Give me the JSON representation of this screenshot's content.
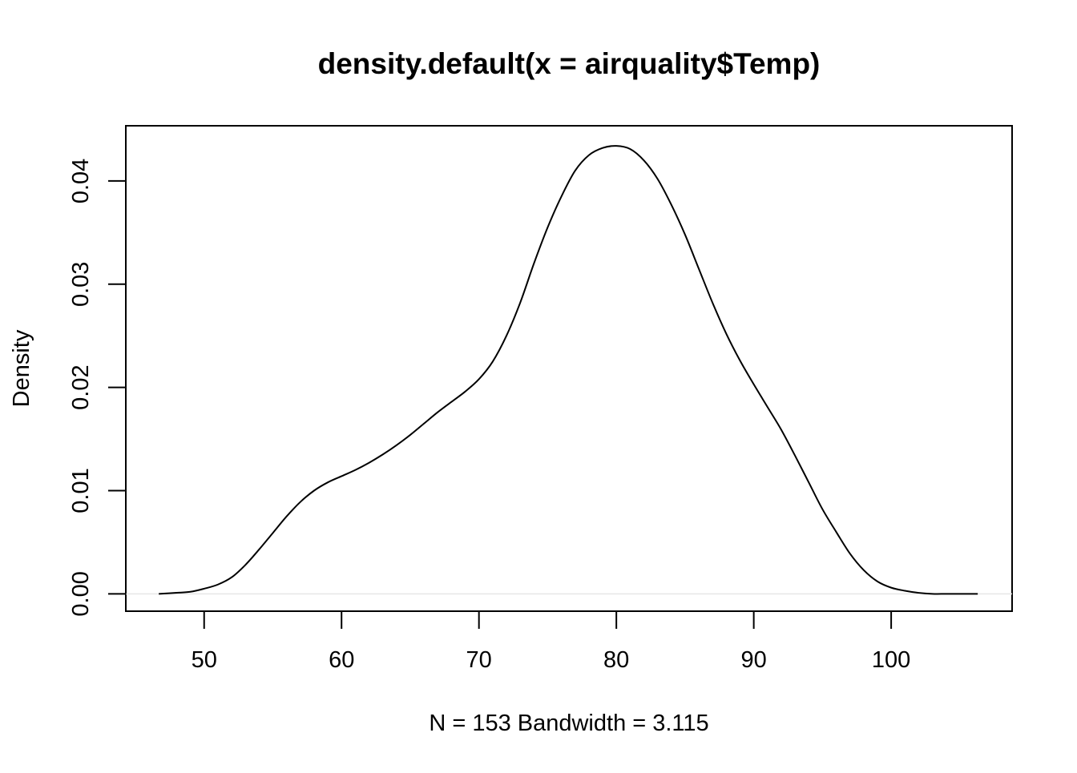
{
  "chart_data": {
    "type": "line",
    "title": "density.default(x = airquality$Temp)",
    "xlabel": "N = 153   Bandwidth = 3.115",
    "ylabel": "Density",
    "xlim": [
      44.3,
      108.8
    ],
    "ylim": [
      -0.00168,
      0.04535
    ],
    "x_ticks": [
      50,
      60,
      70,
      80,
      90,
      100
    ],
    "x_tick_labels": [
      "50",
      "60",
      "70",
      "80",
      "90",
      "100"
    ],
    "y_ticks": [
      0.0,
      0.01,
      0.02,
      0.03,
      0.04
    ],
    "y_tick_labels": [
      "0.00",
      "0.01",
      "0.02",
      "0.03",
      "0.04"
    ],
    "grid": false,
    "colors": {
      "line": "#000000",
      "baseline": "#e6e6e6"
    },
    "series": [
      {
        "name": "density",
        "x": [
          46.7,
          48.0,
          49.0,
          50.0,
          51.0,
          52.0,
          53.0,
          54.0,
          55.0,
          56.0,
          57.0,
          58.0,
          59.0,
          60.0,
          61.0,
          62.0,
          63.0,
          64.0,
          65.0,
          66.0,
          67.0,
          68.0,
          69.0,
          70.0,
          71.0,
          72.0,
          73.0,
          74.0,
          75.0,
          76.0,
          77.0,
          78.0,
          79.0,
          80.0,
          81.0,
          82.0,
          83.0,
          84.0,
          85.0,
          86.0,
          87.0,
          88.0,
          89.0,
          90.0,
          91.0,
          92.0,
          93.0,
          94.0,
          95.0,
          96.0,
          97.0,
          98.0,
          99.0,
          100.0,
          101.0,
          102.0,
          103.0,
          104.0,
          105.0,
          106.3
        ],
        "values": [
          0.0,
          0.0001,
          0.0002,
          0.0005,
          0.0009,
          0.0016,
          0.0028,
          0.0043,
          0.0059,
          0.0075,
          0.0089,
          0.01,
          0.0108,
          0.0114,
          0.012,
          0.0127,
          0.0135,
          0.0144,
          0.0154,
          0.0165,
          0.0176,
          0.0186,
          0.0196,
          0.0208,
          0.0225,
          0.025,
          0.0282,
          0.032,
          0.0355,
          0.0385,
          0.041,
          0.0425,
          0.0432,
          0.0434,
          0.0431,
          0.042,
          0.0402,
          0.0377,
          0.0348,
          0.0315,
          0.0282,
          0.0252,
          0.0226,
          0.0203,
          0.0181,
          0.0159,
          0.0134,
          0.0108,
          0.0082,
          0.006,
          0.0039,
          0.0023,
          0.0012,
          0.0006,
          0.0003,
          0.0001,
          0.0,
          0.0,
          0.0,
          0.0
        ]
      }
    ]
  }
}
